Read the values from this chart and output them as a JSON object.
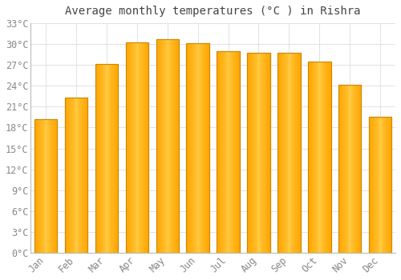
{
  "title": "Average monthly temperatures (°C ) in Rishra",
  "months": [
    "Jan",
    "Feb",
    "Mar",
    "Apr",
    "May",
    "Jun",
    "Jul",
    "Aug",
    "Sep",
    "Oct",
    "Nov",
    "Dec"
  ],
  "temperatures": [
    19.2,
    22.3,
    27.1,
    30.2,
    30.7,
    30.1,
    29.0,
    28.8,
    28.8,
    27.5,
    24.1,
    19.5
  ],
  "bar_color_light": "#FFCC44",
  "bar_color_dark": "#FFA500",
  "bar_edge_color": "#CC8800",
  "background_color": "#FFFFFF",
  "grid_color": "#DDDDDD",
  "text_color": "#888888",
  "title_color": "#444444",
  "ylim": [
    0,
    33
  ],
  "yticks": [
    0,
    3,
    6,
    9,
    12,
    15,
    18,
    21,
    24,
    27,
    30,
    33
  ],
  "title_fontsize": 10,
  "tick_fontsize": 8.5,
  "bar_width": 0.75
}
